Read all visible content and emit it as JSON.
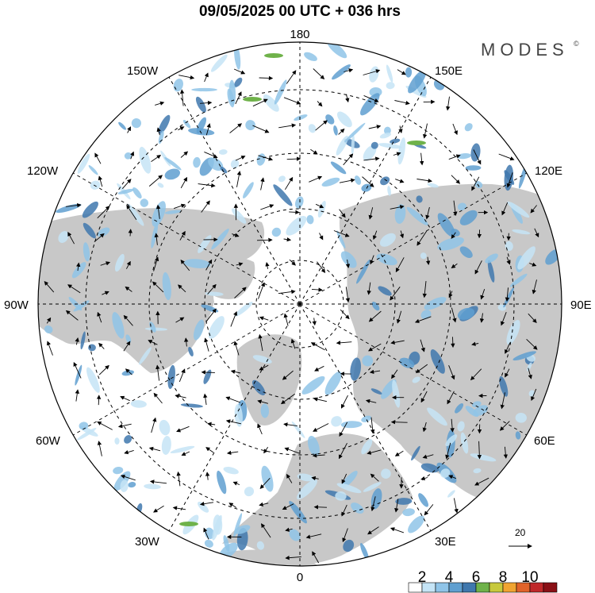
{
  "header": {
    "title": "09/05/2025  00 UTC  + 036 hrs"
  },
  "brand": {
    "name": "MODES",
    "mark": "©"
  },
  "map": {
    "projection": "north-polar-stereographic",
    "longitude_labels": {
      "top": "180",
      "bottom": "0",
      "left": "90W",
      "right": "90E",
      "upper_left_1": "150W",
      "upper_left_2": "120W",
      "lower_left_1": "60W",
      "lower_left_2": "30W",
      "upper_right_1": "150E",
      "upper_right_2": "120E",
      "lower_right_1": "60E",
      "lower_right_2": "30E"
    },
    "vector_reference": {
      "label": "20"
    }
  },
  "colorbar": {
    "labels": [
      "2",
      "4",
      "6",
      "8",
      "10"
    ],
    "colors": [
      "#ffffff",
      "#c5e4f6",
      "#8fc4e8",
      "#5f9fd0",
      "#3f78ae",
      "#6fb24a",
      "#c7c93c",
      "#f0a431",
      "#e0632a",
      "#c0282a",
      "#8a1016"
    ]
  },
  "colors": {
    "land": "#c8c8c8",
    "ocean": "#ffffff",
    "grid": "#000000"
  }
}
